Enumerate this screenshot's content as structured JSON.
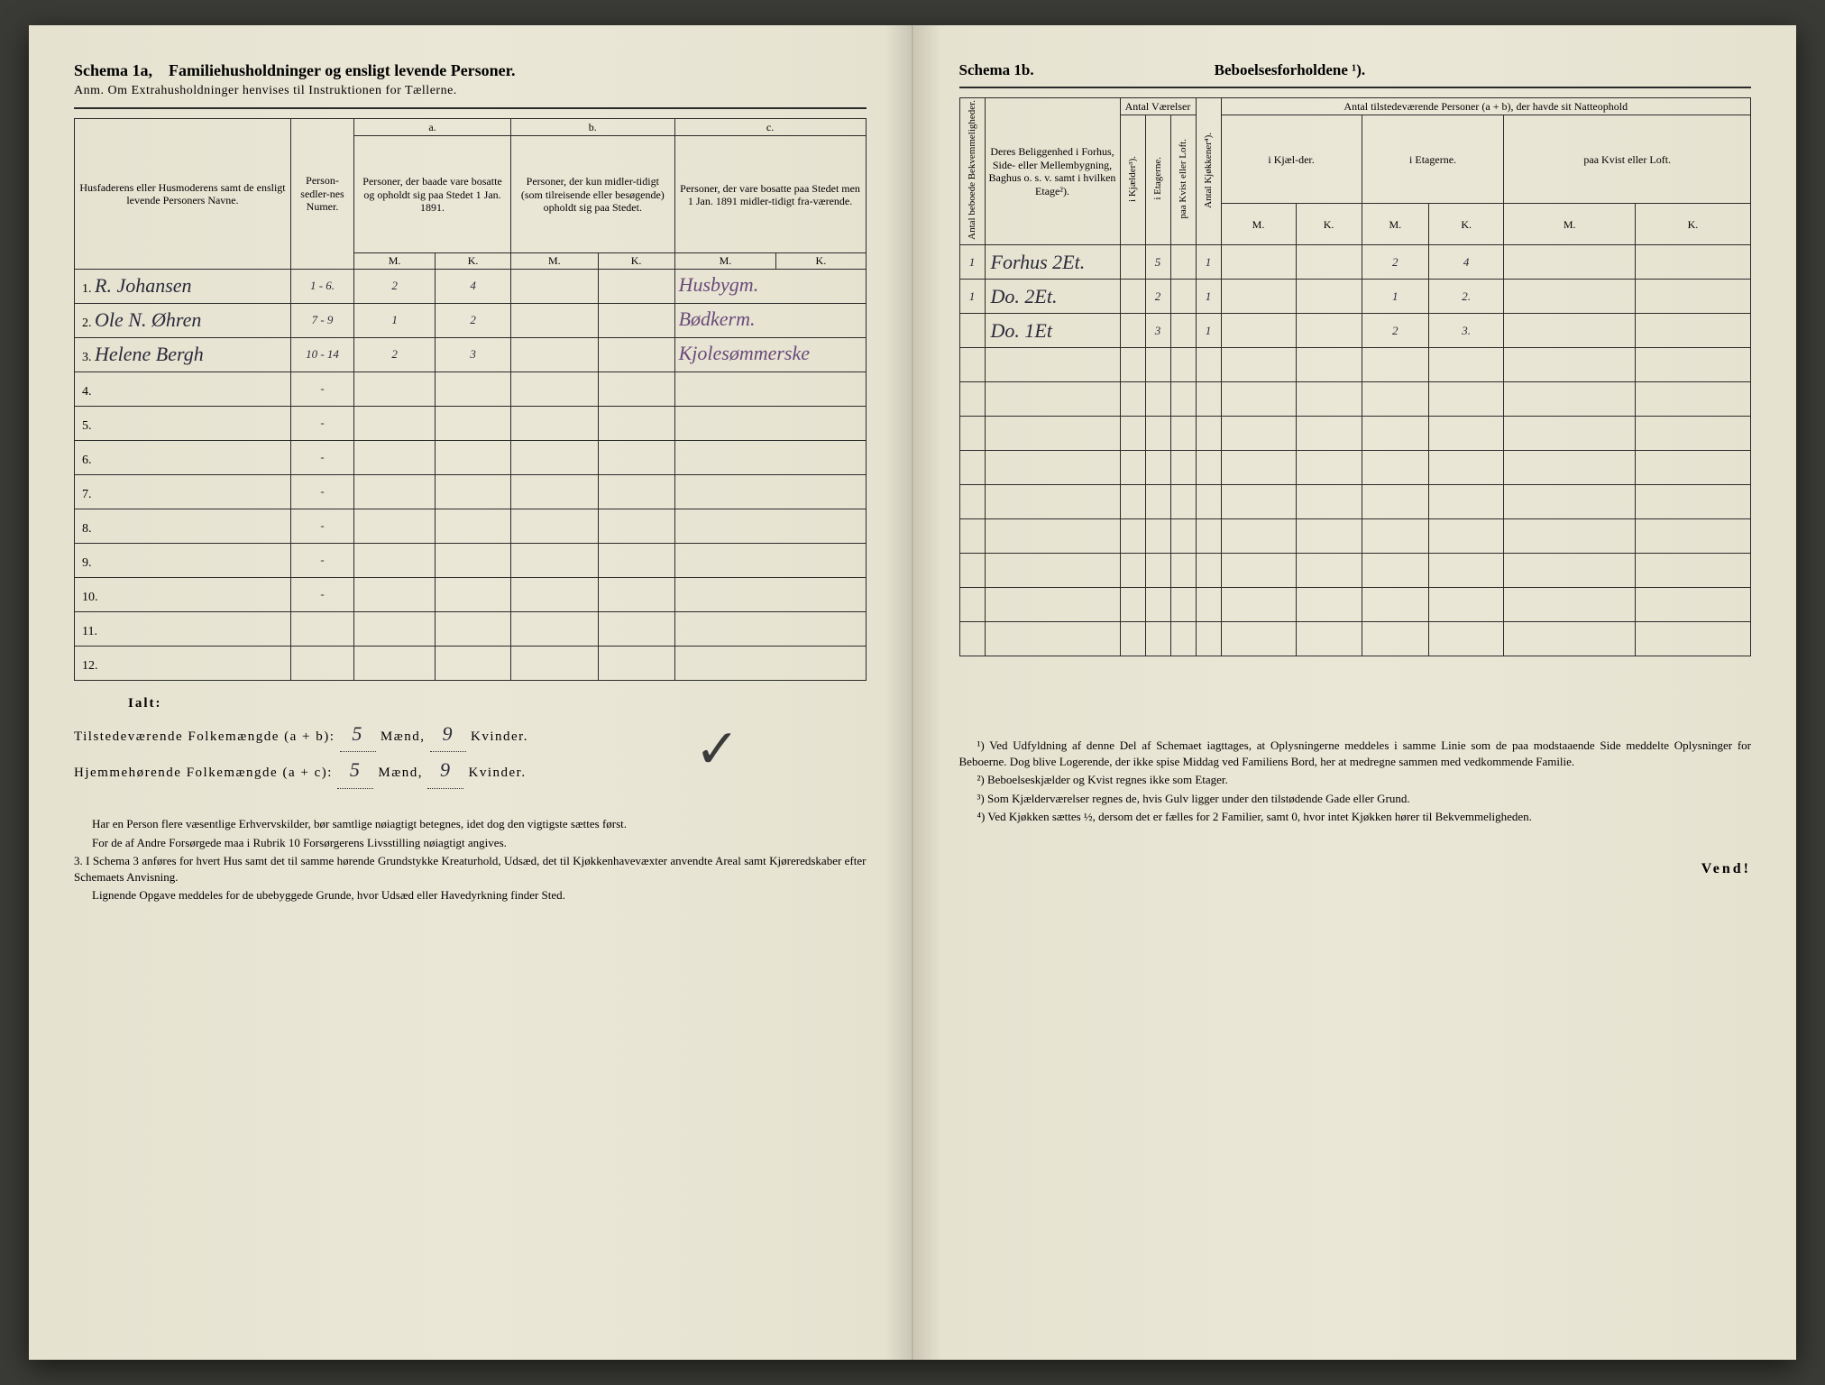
{
  "left": {
    "title_a": "Schema 1a,",
    "title_b": "Familiehusholdninger og ensligt levende Personer.",
    "anm": "Anm. Om Extrahusholdninger henvises til Instruktionen for Tællerne.",
    "headers": {
      "names": "Husfaderens eller Husmoderens samt de ensligt levende Personers Navne.",
      "pers_num": "Person-sedler-nes Numer.",
      "col_a_label": "a.",
      "col_a": "Personer, der baade vare bosatte og opholdt sig paa Stedet 1 Jan. 1891.",
      "col_b_label": "b.",
      "col_b": "Personer, der kun midler-tidigt (som tilreisende eller besøgende) opholdt sig paa Stedet.",
      "col_c_label": "c.",
      "col_c": "Personer, der vare bosatte paa Stedet men 1 Jan. 1891 midler-tidigt fra-værende.",
      "M": "M.",
      "K": "K."
    },
    "rows": [
      {
        "n": "1.",
        "name": "R. Johansen",
        "num": "1 - 6.",
        "aM": "2",
        "aK": "4",
        "bM": "",
        "bK": "",
        "cM": "",
        "cK": "",
        "note": "Husbygm."
      },
      {
        "n": "2.",
        "name": "Ole N. Øhren",
        "num": "7 - 9",
        "aM": "1",
        "aK": "2",
        "bM": "",
        "bK": "",
        "cM": "",
        "cK": "",
        "note": "Bødkerm."
      },
      {
        "n": "3.",
        "name": "Helene Bergh",
        "num": "10 - 14",
        "aM": "2",
        "aK": "3",
        "bM": "",
        "bK": "",
        "cM": "",
        "cK": "",
        "note": "Kjolesømmerske"
      },
      {
        "n": "4.",
        "name": "",
        "num": "-",
        "aM": "",
        "aK": "",
        "bM": "",
        "bK": "",
        "cM": "",
        "cK": "",
        "note": ""
      },
      {
        "n": "5.",
        "name": "",
        "num": "-",
        "aM": "",
        "aK": "",
        "bM": "",
        "bK": "",
        "cM": "",
        "cK": "",
        "note": ""
      },
      {
        "n": "6.",
        "name": "",
        "num": "-",
        "aM": "",
        "aK": "",
        "bM": "",
        "bK": "",
        "cM": "",
        "cK": "",
        "note": ""
      },
      {
        "n": "7.",
        "name": "",
        "num": "-",
        "aM": "",
        "aK": "",
        "bM": "",
        "bK": "",
        "cM": "",
        "cK": "",
        "note": ""
      },
      {
        "n": "8.",
        "name": "",
        "num": "-",
        "aM": "",
        "aK": "",
        "bM": "",
        "bK": "",
        "cM": "",
        "cK": "",
        "note": ""
      },
      {
        "n": "9.",
        "name": "",
        "num": "-",
        "aM": "",
        "aK": "",
        "bM": "",
        "bK": "",
        "cM": "",
        "cK": "",
        "note": ""
      },
      {
        "n": "10.",
        "name": "",
        "num": "-",
        "aM": "",
        "aK": "",
        "bM": "",
        "bK": "",
        "cM": "",
        "cK": "",
        "note": ""
      },
      {
        "n": "11.",
        "name": "",
        "num": "",
        "aM": "",
        "aK": "",
        "bM": "",
        "bK": "",
        "cM": "",
        "cK": "",
        "note": ""
      },
      {
        "n": "12.",
        "name": "",
        "num": "",
        "aM": "",
        "aK": "",
        "bM": "",
        "bK": "",
        "cM": "",
        "cK": "",
        "note": ""
      }
    ],
    "totals": {
      "ialt": "Ialt:",
      "line1_label": "Tilstedeværende Folkemængde (a + b):",
      "line2_label": "Hjemmehørende Folkemængde (a + c):",
      "maend": "Mænd,",
      "kvinder": "Kvinder.",
      "v1m": "5",
      "v1k": "9",
      "v2m": "5",
      "v2k": "9"
    },
    "footnotes": [
      "Har en Person flere væsentlige Erhvervskilder, bør samtlige nøiagtigt betegnes, idet dog den vigtigste sættes først.",
      "For de af Andre Forsørgede maa i Rubrik 10 Forsørgerens Livsstilling nøiagtigt angives.",
      "3. I Schema 3 anføres for hvert Hus samt det til samme hørende Grundstykke Kreaturhold, Udsæd, det til Kjøkkenhavevæxter anvendte Areal samt Kjøreredskaber efter Schemaets Anvisning.",
      "Lignende Opgave meddeles for de ubebyggede Grunde, hvor Udsæd eller Havedyrkning finder Sted."
    ]
  },
  "right": {
    "title_a": "Schema 1b.",
    "title_b": "Beboelsesforholdene ¹).",
    "headers": {
      "antal_bekv": "Antal beboede Bekvemmeligheder.",
      "belig": "Deres Beliggenhed i Forhus, Side- eller Mellembygning, Baghus o. s. v. samt i hvilken Etage²).",
      "antal_vaer": "Antal Værelser",
      "kjaelder": "i Kjælder³).",
      "etagerne": "i Etagerne.",
      "kvist": "paa Kvist eller Loft.",
      "kjokken": "Antal Kjøkkener⁴).",
      "antal_pers": "Antal tilstedeværende Personer (a + b), der havde sit Natteophold",
      "pers_kjael": "i Kjæl-der.",
      "pers_etag": "i Etagerne.",
      "pers_kvist": "paa Kvist eller Loft.",
      "M": "M.",
      "K": "K."
    },
    "rows": [
      {
        "bekv": "1",
        "belig": "Forhus 2Et.",
        "vk": "",
        "ve": "5",
        "vkv": "",
        "kj": "1",
        "pkM": "",
        "pkK": "",
        "peM": "2",
        "peK": "4",
        "pkvM": "",
        "pkvK": ""
      },
      {
        "bekv": "1",
        "belig": "Do. 2Et.",
        "vk": "",
        "ve": "2",
        "vkv": "",
        "kj": "1",
        "pkM": "",
        "pkK": "",
        "peM": "1",
        "peK": "2.",
        "pkvM": "",
        "pkvK": ""
      },
      {
        "bekv": "",
        "belig": "Do. 1Et",
        "vk": "",
        "ve": "3",
        "vkv": "",
        "kj": "1",
        "pkM": "",
        "pkK": "",
        "peM": "2",
        "peK": "3.",
        "pkvM": "",
        "pkvK": ""
      },
      {
        "bekv": "",
        "belig": "",
        "vk": "",
        "ve": "",
        "vkv": "",
        "kj": "",
        "pkM": "",
        "pkK": "",
        "peM": "",
        "peK": "",
        "pkvM": "",
        "pkvK": ""
      },
      {
        "bekv": "",
        "belig": "",
        "vk": "",
        "ve": "",
        "vkv": "",
        "kj": "",
        "pkM": "",
        "pkK": "",
        "peM": "",
        "peK": "",
        "pkvM": "",
        "pkvK": ""
      },
      {
        "bekv": "",
        "belig": "",
        "vk": "",
        "ve": "",
        "vkv": "",
        "kj": "",
        "pkM": "",
        "pkK": "",
        "peM": "",
        "peK": "",
        "pkvM": "",
        "pkvK": ""
      },
      {
        "bekv": "",
        "belig": "",
        "vk": "",
        "ve": "",
        "vkv": "",
        "kj": "",
        "pkM": "",
        "pkK": "",
        "peM": "",
        "peK": "",
        "pkvM": "",
        "pkvK": ""
      },
      {
        "bekv": "",
        "belig": "",
        "vk": "",
        "ve": "",
        "vkv": "",
        "kj": "",
        "pkM": "",
        "pkK": "",
        "peM": "",
        "peK": "",
        "pkvM": "",
        "pkvK": ""
      },
      {
        "bekv": "",
        "belig": "",
        "vk": "",
        "ve": "",
        "vkv": "",
        "kj": "",
        "pkM": "",
        "pkK": "",
        "peM": "",
        "peK": "",
        "pkvM": "",
        "pkvK": ""
      },
      {
        "bekv": "",
        "belig": "",
        "vk": "",
        "ve": "",
        "vkv": "",
        "kj": "",
        "pkM": "",
        "pkK": "",
        "peM": "",
        "peK": "",
        "pkvM": "",
        "pkvK": ""
      },
      {
        "bekv": "",
        "belig": "",
        "vk": "",
        "ve": "",
        "vkv": "",
        "kj": "",
        "pkM": "",
        "pkK": "",
        "peM": "",
        "peK": "",
        "pkvM": "",
        "pkvK": ""
      },
      {
        "bekv": "",
        "belig": "",
        "vk": "",
        "ve": "",
        "vkv": "",
        "kj": "",
        "pkM": "",
        "pkK": "",
        "peM": "",
        "peK": "",
        "pkvM": "",
        "pkvK": ""
      }
    ],
    "footnotes": [
      "¹) Ved Udfyldning af denne Del af Schemaet iagttages, at Oplysningerne meddeles i samme Linie som de paa modstaaende Side meddelte Oplysninger for Beboerne. Dog blive Logerende, der ikke spise Middag ved Familiens Bord, her at medregne sammen med vedkommende Familie.",
      "²) Beboelseskjælder og Kvist regnes ikke som Etager.",
      "³) Som Kjælderværelser regnes de, hvis Gulv ligger under den tilstødende Gade eller Grund.",
      "⁴) Ved Kjøkken sættes ½, dersom det er fælles for 2 Familier, samt 0, hvor intet Kjøkken hører til Bekvemmeligheden."
    ],
    "vend": "Vend!"
  }
}
